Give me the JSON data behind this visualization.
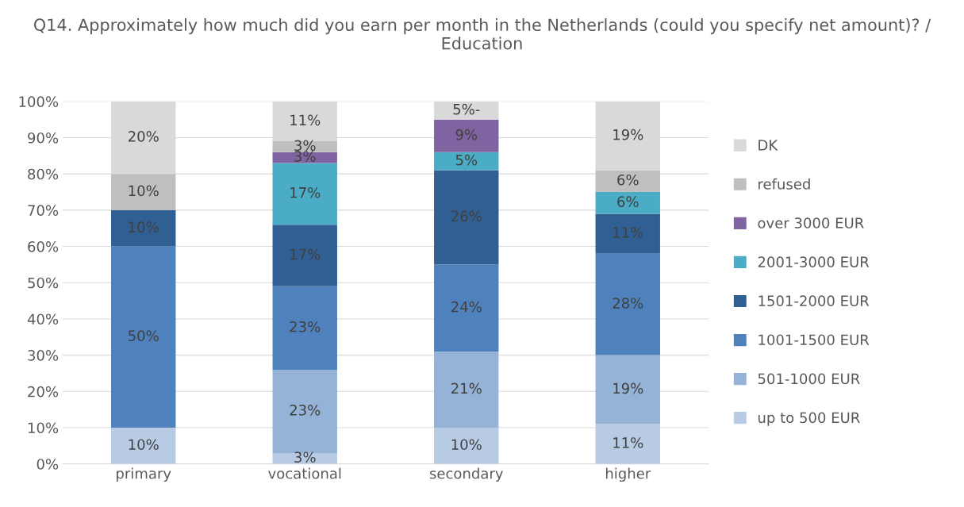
{
  "chart_data": {
    "type": "bar",
    "stacked": true,
    "title": "Q14. Approximately how much did you earn per month in the Netherlands (could you specify net amount)? / Education",
    "categories": [
      "primary",
      "vocational",
      "secondary",
      "higher"
    ],
    "series": [
      {
        "name": "up to 500 EUR",
        "color": "#b7cbe5",
        "values": [
          10,
          3,
          10,
          11
        ],
        "value_labels": [
          "10%",
          "3%",
          "10%",
          "11%"
        ]
      },
      {
        "name": "501-1000 EUR",
        "color": "#95b3d7",
        "values": [
          0,
          23,
          21,
          19
        ],
        "value_labels": [
          null,
          "23%",
          "21%",
          "19%"
        ]
      },
      {
        "name": "1001-1500 EUR",
        "color": "#4f81bd",
        "values": [
          50,
          23,
          24,
          28
        ],
        "value_labels": [
          "50%",
          "23%",
          "24%",
          "28%"
        ]
      },
      {
        "name": "1501-2000 EUR",
        "color": "#2f5f93",
        "values": [
          10,
          17,
          26,
          11
        ],
        "value_labels": [
          "10%",
          "17%",
          "26%",
          "11%"
        ]
      },
      {
        "name": "2001-3000 EUR",
        "color": "#4bacc6",
        "values": [
          0,
          17,
          5,
          6
        ],
        "value_labels": [
          null,
          "17%",
          "5%",
          "6%"
        ]
      },
      {
        "name": "over 3000 EUR",
        "color": "#8064a2",
        "values": [
          0,
          3,
          9,
          0
        ],
        "value_labels": [
          null,
          "3%",
          "9%",
          null
        ]
      },
      {
        "name": "refused",
        "color": "#bfbfbf",
        "values": [
          10,
          3,
          0,
          6
        ],
        "value_labels": [
          "10%",
          "3%",
          null,
          "6%"
        ]
      },
      {
        "name": "DK",
        "color": "#d9d9d9",
        "values": [
          20,
          11,
          5,
          19
        ],
        "value_labels": [
          "20%",
          "11%",
          "5%-",
          "19%"
        ]
      }
    ],
    "ylim": [
      0,
      100
    ],
    "yticks": [
      {
        "value": 0,
        "label": "0%"
      },
      {
        "value": 10,
        "label": "10%"
      },
      {
        "value": 20,
        "label": "20%"
      },
      {
        "value": 30,
        "label": "30%"
      },
      {
        "value": 40,
        "label": "40%"
      },
      {
        "value": 50,
        "label": "50%"
      },
      {
        "value": 60,
        "label": "60%"
      },
      {
        "value": 70,
        "label": "70%"
      },
      {
        "value": 80,
        "label": "80%"
      },
      {
        "value": 90,
        "label": "90%"
      },
      {
        "value": 100,
        "label": "100%"
      }
    ],
    "grid": "y",
    "legend": "right"
  }
}
